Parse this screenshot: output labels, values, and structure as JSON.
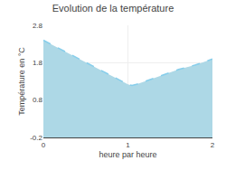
{
  "chart_data": {
    "type": "area",
    "title": "Evolution de la température",
    "xlabel": "heure par heure",
    "ylabel": "Température en °C",
    "x": [
      0,
      0.1,
      0.2,
      0.3,
      0.4,
      0.5,
      0.6,
      0.7,
      0.8,
      0.9,
      1.0,
      1.05,
      1.1,
      1.2,
      1.3,
      1.4,
      1.5,
      1.6,
      1.7,
      1.8,
      1.9,
      2.0
    ],
    "series": [
      {
        "type": "area",
        "color": "#ADD8E6",
        "values": [
          2.4,
          2.28,
          2.16,
          2.04,
          1.92,
          1.8,
          1.68,
          1.56,
          1.44,
          1.32,
          1.22,
          1.19,
          1.22,
          1.3,
          1.38,
          1.46,
          1.54,
          1.62,
          1.68,
          1.74,
          1.82,
          1.9
        ]
      },
      {
        "type": "line",
        "color": "#87CEEB",
        "line_style": "dashed",
        "values": [
          2.4,
          2.28,
          2.16,
          2.04,
          1.92,
          1.8,
          1.68,
          1.56,
          1.44,
          1.32,
          1.22,
          1.19,
          1.22,
          1.3,
          1.38,
          1.46,
          1.54,
          1.62,
          1.68,
          1.74,
          1.82,
          1.9
        ]
      }
    ],
    "xlim": [
      0,
      2
    ],
    "xticks": [
      0,
      1,
      2
    ],
    "ylim": [
      -0.2,
      2.8
    ],
    "yticks": [
      -0.2,
      0.8,
      1.8,
      2.8
    ],
    "grid": true
  }
}
